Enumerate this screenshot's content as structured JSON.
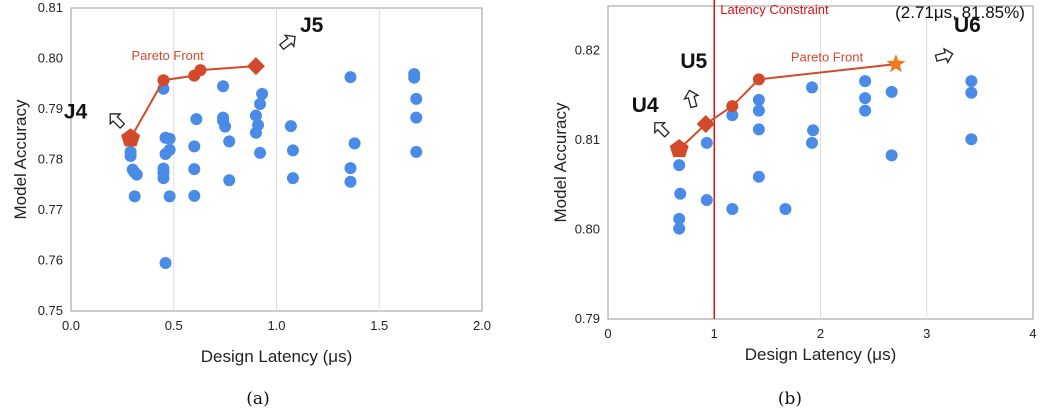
{
  "colors": {
    "scatter": "#4a8be8",
    "pareto": "#d24a2a",
    "star": "#f07a1a",
    "constraint": "#dd1111",
    "grid": "#dddddd",
    "border": "#9a9a9a"
  },
  "chart_data": [
    {
      "type": "scatter",
      "caption": "(a)",
      "xlabel": "Design Latency (μs)",
      "ylabel": "Model Accuracy",
      "xlim": [
        0.0,
        2.0
      ],
      "ylim": [
        0.75,
        0.81
      ],
      "xticks": [
        "0.0",
        "0.5",
        "1.0",
        "1.5",
        "2.0"
      ],
      "yticks": [
        "0.75",
        "0.76",
        "0.77",
        "0.78",
        "0.79",
        "0.80",
        "0.81"
      ],
      "grid": "vertical",
      "points": [
        {
          "x": 0.29,
          "y": 0.7838
        },
        {
          "x": 0.29,
          "y": 0.7815
        },
        {
          "x": 0.29,
          "y": 0.7807
        },
        {
          "x": 0.3,
          "y": 0.778
        },
        {
          "x": 0.31,
          "y": 0.7774
        },
        {
          "x": 0.32,
          "y": 0.777
        },
        {
          "x": 0.31,
          "y": 0.7727
        },
        {
          "x": 0.45,
          "y": 0.794
        },
        {
          "x": 0.46,
          "y": 0.7843
        },
        {
          "x": 0.46,
          "y": 0.7811
        },
        {
          "x": 0.45,
          "y": 0.7782
        },
        {
          "x": 0.45,
          "y": 0.7774
        },
        {
          "x": 0.45,
          "y": 0.7763
        },
        {
          "x": 0.46,
          "y": 0.7595
        },
        {
          "x": 0.48,
          "y": 0.7841
        },
        {
          "x": 0.48,
          "y": 0.7819
        },
        {
          "x": 0.48,
          "y": 0.7727
        },
        {
          "x": 0.61,
          "y": 0.788
        },
        {
          "x": 0.6,
          "y": 0.7826
        },
        {
          "x": 0.6,
          "y": 0.7781
        },
        {
          "x": 0.6,
          "y": 0.7728
        },
        {
          "x": 0.74,
          "y": 0.7945
        },
        {
          "x": 0.74,
          "y": 0.7883
        },
        {
          "x": 0.74,
          "y": 0.7877
        },
        {
          "x": 0.75,
          "y": 0.7865
        },
        {
          "x": 0.77,
          "y": 0.7836
        },
        {
          "x": 0.77,
          "y": 0.7759
        },
        {
          "x": 0.93,
          "y": 0.793
        },
        {
          "x": 0.92,
          "y": 0.791
        },
        {
          "x": 0.9,
          "y": 0.7887
        },
        {
          "x": 0.91,
          "y": 0.7868
        },
        {
          "x": 0.9,
          "y": 0.7853
        },
        {
          "x": 0.92,
          "y": 0.7813
        },
        {
          "x": 1.07,
          "y": 0.7866
        },
        {
          "x": 1.08,
          "y": 0.7818
        },
        {
          "x": 1.08,
          "y": 0.7763
        },
        {
          "x": 1.36,
          "y": 0.7963
        },
        {
          "x": 1.38,
          "y": 0.7832
        },
        {
          "x": 1.36,
          "y": 0.7783
        },
        {
          "x": 1.36,
          "y": 0.7756
        },
        {
          "x": 1.67,
          "y": 0.7969
        },
        {
          "x": 1.67,
          "y": 0.7962
        },
        {
          "x": 1.68,
          "y": 0.792
        },
        {
          "x": 1.68,
          "y": 0.7883
        },
        {
          "x": 1.68,
          "y": 0.7815
        }
      ],
      "pareto": {
        "label": "Pareto Front",
        "points": [
          {
            "x": 0.29,
            "y": 0.7842,
            "marker": "pentagon"
          },
          {
            "x": 0.45,
            "y": 0.7957,
            "marker": "circle"
          },
          {
            "x": 0.6,
            "y": 0.7966,
            "marker": "circle"
          },
          {
            "x": 0.63,
            "y": 0.7977,
            "marker": "circle"
          },
          {
            "x": 0.9,
            "y": 0.7985,
            "marker": "diamond"
          }
        ]
      },
      "callouts": [
        {
          "label": "J4",
          "x": 0.29,
          "y": 0.7842
        },
        {
          "label": "J5",
          "x": 0.9,
          "y": 0.7985
        }
      ]
    },
    {
      "type": "scatter",
      "caption": "(b)",
      "xlabel": "Design Latency (μs)",
      "ylabel": "Model Accuracy",
      "xlim": [
        0,
        4
      ],
      "ylim": [
        0.79,
        0.825
      ],
      "xticks": [
        "0",
        "1",
        "2",
        "3",
        "4"
      ],
      "yticks": [
        "0.79",
        "0.80",
        "0.81",
        "0.82"
      ],
      "grid": "vertical",
      "constraint": {
        "x": 1.0,
        "label": "Latency Constraint"
      },
      "points": [
        {
          "x": 0.67,
          "y": 0.8072
        },
        {
          "x": 0.68,
          "y": 0.804
        },
        {
          "x": 0.67,
          "y": 0.8012
        },
        {
          "x": 0.67,
          "y": 0.8001
        },
        {
          "x": 0.93,
          "y": 0.8097
        },
        {
          "x": 0.93,
          "y": 0.8033
        },
        {
          "x": 1.17,
          "y": 0.8128
        },
        {
          "x": 1.17,
          "y": 0.8023
        },
        {
          "x": 1.42,
          "y": 0.8145
        },
        {
          "x": 1.42,
          "y": 0.8133
        },
        {
          "x": 1.42,
          "y": 0.8112
        },
        {
          "x": 1.42,
          "y": 0.8059
        },
        {
          "x": 1.67,
          "y": 0.8023
        },
        {
          "x": 1.92,
          "y": 0.8159
        },
        {
          "x": 1.93,
          "y": 0.8111
        },
        {
          "x": 1.92,
          "y": 0.8097
        },
        {
          "x": 2.42,
          "y": 0.8166
        },
        {
          "x": 2.42,
          "y": 0.8147
        },
        {
          "x": 2.42,
          "y": 0.8133
        },
        {
          "x": 2.67,
          "y": 0.8154
        },
        {
          "x": 2.67,
          "y": 0.8083
        },
        {
          "x": 3.42,
          "y": 0.8166
        },
        {
          "x": 3.42,
          "y": 0.8153
        },
        {
          "x": 3.42,
          "y": 0.8101
        }
      ],
      "pareto": {
        "label": "Pareto Front",
        "points": [
          {
            "x": 0.67,
            "y": 0.809,
            "marker": "pentagon"
          },
          {
            "x": 0.92,
            "y": 0.8118,
            "marker": "diamond"
          },
          {
            "x": 1.17,
            "y": 0.8138,
            "marker": "circle"
          },
          {
            "x": 1.42,
            "y": 0.8168,
            "marker": "circle"
          },
          {
            "x": 2.71,
            "y": 0.8185,
            "marker": "star"
          }
        ]
      },
      "callouts": [
        {
          "label": "U4",
          "x": 0.67,
          "y": 0.809
        },
        {
          "label": "U5",
          "x": 0.92,
          "y": 0.8118
        },
        {
          "label": "U6",
          "x": 2.71,
          "y": 0.8185
        }
      ],
      "annotation": "(2.71μs, 81.85%)"
    }
  ]
}
